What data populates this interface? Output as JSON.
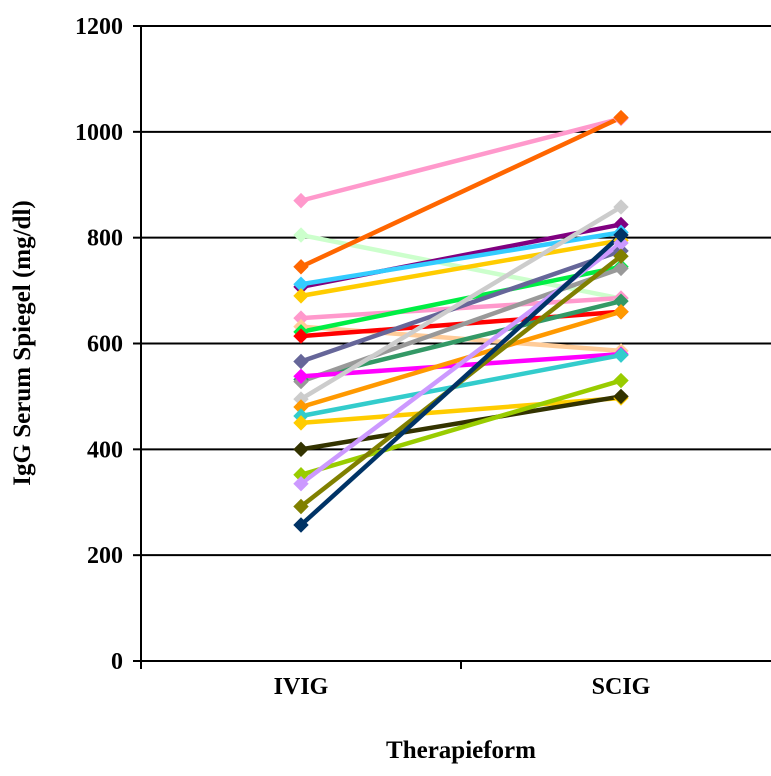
{
  "chart_data": {
    "type": "line",
    "title": "",
    "xlabel": "Therapieform",
    "ylabel": "IgG Serum Spiegel (mg/dl)",
    "categories": [
      "IVIG",
      "SCIG"
    ],
    "ylim": [
      0,
      1200
    ],
    "yticks": [
      0,
      200,
      400,
      600,
      800,
      1000,
      1200
    ],
    "grid": true,
    "legend": "none",
    "series": [
      {
        "color": "#ff99cc",
        "values": [
          870,
          1025
        ]
      },
      {
        "color": "#ccffcc",
        "values": [
          805,
          685
        ]
      },
      {
        "color": "#ff6600",
        "values": [
          745,
          1027
        ]
      },
      {
        "color": "#800080",
        "values": [
          707,
          825
        ]
      },
      {
        "color": "#33ccff",
        "values": [
          712,
          810
        ]
      },
      {
        "color": "#ffcc00",
        "values": [
          690,
          795
        ]
      },
      {
        "color": "#ff99cc",
        "values": [
          648,
          686
        ]
      },
      {
        "color": "#ffcc99",
        "values": [
          632,
          586
        ]
      },
      {
        "color": "#00ee44",
        "values": [
          622,
          745
        ]
      },
      {
        "color": "#ff0000",
        "values": [
          614,
          660
        ]
      },
      {
        "color": "#666699",
        "values": [
          566,
          775
        ]
      },
      {
        "color": "#339966",
        "values": [
          532,
          680
        ]
      },
      {
        "color": "#999999",
        "values": [
          528,
          742
        ]
      },
      {
        "color": "#ff00ff",
        "values": [
          538,
          580
        ]
      },
      {
        "color": "#cccccc",
        "values": [
          495,
          858
        ]
      },
      {
        "color": "#ff9900",
        "values": [
          480,
          660
        ]
      },
      {
        "color": "#33cccc",
        "values": [
          463,
          578
        ]
      },
      {
        "color": "#ffcc00",
        "values": [
          450,
          497
        ]
      },
      {
        "color": "#333300",
        "values": [
          400,
          500
        ]
      },
      {
        "color": "#99cc00",
        "values": [
          352,
          530
        ]
      },
      {
        "color": "#cc99ff",
        "values": [
          335,
          790
        ]
      },
      {
        "color": "#808000",
        "values": [
          292,
          765
        ]
      },
      {
        "color": "#003366",
        "values": [
          257,
          805
        ]
      }
    ]
  }
}
